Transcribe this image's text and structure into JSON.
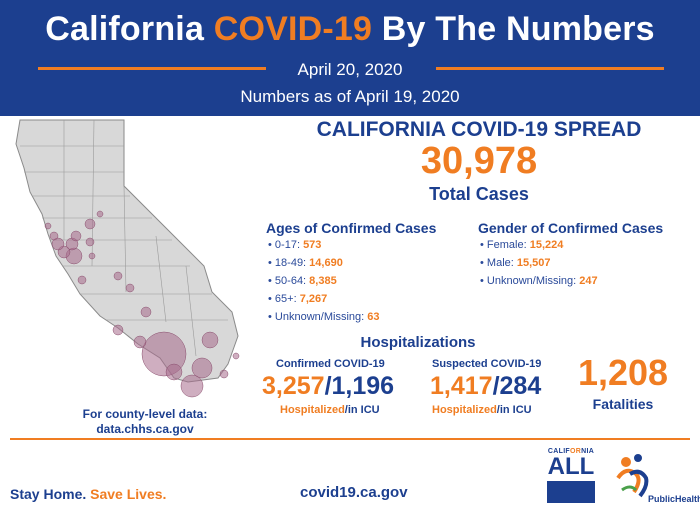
{
  "header": {
    "title_part1": "California ",
    "title_highlight": "COVID-19",
    "title_part2": " By The Numbers",
    "date": "April 20, 2020",
    "as_of": "Numbers as of April 19, 2020"
  },
  "map": {
    "county_note_line1": "For county-level data:",
    "county_note_line2": "data.chhs.ca.gov"
  },
  "spread": {
    "heading": "CALIFORNIA COVID-19 SPREAD",
    "total_cases": "30,978",
    "total_label": "Total Cases"
  },
  "ages": {
    "heading": "Ages of Confirmed Cases",
    "items": [
      {
        "label": "0-17: ",
        "value": "573"
      },
      {
        "label": "18-49: ",
        "value": "14,690"
      },
      {
        "label": "50-64: ",
        "value": "8,385"
      },
      {
        "label": "65+: ",
        "value": "7,267"
      },
      {
        "label": "Unknown/Missing: ",
        "value": "63"
      }
    ]
  },
  "gender": {
    "heading": "Gender of Confirmed Cases",
    "items": [
      {
        "label": "Female: ",
        "value": "15,224"
      },
      {
        "label": "Male: ",
        "value": "15,507"
      },
      {
        "label": "Unknown/Missing: ",
        "value": "247"
      }
    ]
  },
  "hospitalizations": {
    "heading": "Hospitalizations",
    "confirmed": {
      "heading": "Confirmed COVID-19",
      "hospitalized": "3,257",
      "slash": "/",
      "icu": "1,196",
      "label_hosp": "Hospitalized",
      "label_icu": "/in ICU"
    },
    "suspected": {
      "heading": "Suspected COVID-19",
      "hospitalized": "1,417",
      "slash": "/",
      "icu": "284",
      "label_hosp": "Hospitalized",
      "label_icu": "/in ICU"
    }
  },
  "fatalities": {
    "value": "1,208",
    "label": "Fatalities"
  },
  "footer": {
    "slogan_part1": "Stay Home. ",
    "slogan_part2": "Save Lives.",
    "website": "covid19.ca.gov",
    "ca_all_top_1": "CALIF",
    "ca_all_top_2": "OR",
    "ca_all_top_3": "NIA",
    "ca_all_word": "ALL",
    "public_health": "PublicHealth"
  },
  "colors": {
    "navy": "#1c3f8f",
    "orange": "#f07d22",
    "bubble": "#a86b8c",
    "map_fill": "#d8d8d8"
  }
}
